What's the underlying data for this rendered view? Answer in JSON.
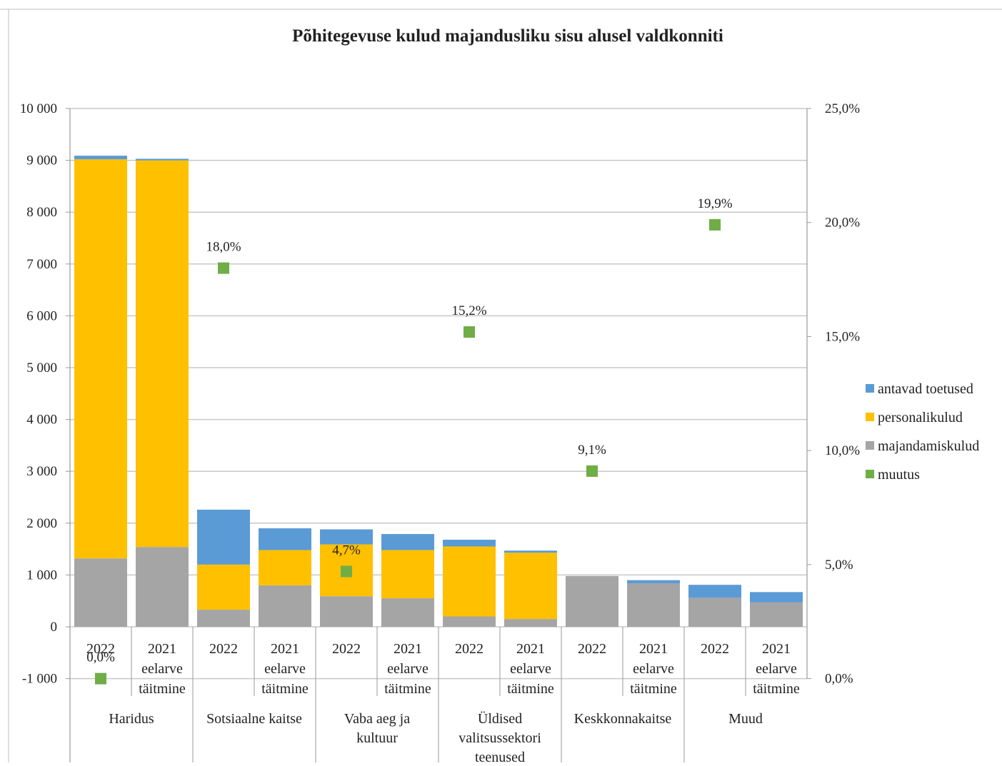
{
  "chart_data": {
    "type": "bar",
    "title": "Põhitegevuse kulud majandusliku sisu alusel valdkonniti",
    "stacked": true,
    "groups": [
      "Haridus",
      "Sotsiaalne kaitse",
      "Vaba aeg ja kultuur",
      "Üldised valitsussektori teenused",
      "Keskkonnakaitse",
      "Muud"
    ],
    "categories": [
      "2022",
      "2021 eelarve täitmine",
      "2022",
      "2021 eelarve täitmine",
      "2022",
      "2021 eelarve täitmine",
      "2022",
      "2021 eelarve täitmine",
      "2022",
      "2021 eelarve täitmine",
      "2022",
      "2021 eelarve täitmine"
    ],
    "category_lines": [
      [
        "2022"
      ],
      [
        "2021",
        "eelarve",
        "täitmine"
      ],
      [
        "2022"
      ],
      [
        "2021",
        "eelarve",
        "täitmine"
      ],
      [
        "2022"
      ],
      [
        "2021",
        "eelarve",
        "täitmine"
      ],
      [
        "2022"
      ],
      [
        "2021",
        "eelarve",
        "täitmine"
      ],
      [
        "2022"
      ],
      [
        "2021",
        "eelarve",
        "täitmine"
      ],
      [
        "2022"
      ],
      [
        "2021",
        "eelarve",
        "täitmine"
      ]
    ],
    "group_lines": [
      [
        "Haridus"
      ],
      [
        "Sotsiaalne kaitse"
      ],
      [
        "Vaba aeg ja",
        "kultuur"
      ],
      [
        "Üldised",
        "valitsussektori",
        "teenused"
      ],
      [
        "Keskkonnakaitse"
      ],
      [
        "Muud"
      ]
    ],
    "series": [
      {
        "name": "majandamiskulud",
        "color": "#a5a5a5",
        "values": [
          1320,
          1540,
          330,
          800,
          590,
          550,
          200,
          150,
          980,
          840,
          560,
          470
        ]
      },
      {
        "name": "personalikulud",
        "color": "#ffc000",
        "values": [
          7700,
          7460,
          870,
          680,
          1000,
          930,
          1350,
          1280,
          0,
          0,
          0,
          0
        ]
      },
      {
        "name": "antavad toetused",
        "color": "#5b9bd5",
        "values": [
          70,
          30,
          1060,
          420,
          290,
          310,
          130,
          40,
          0,
          60,
          250,
          200
        ]
      }
    ],
    "change": {
      "name": "muutus",
      "color": "#70ad47",
      "category_index": [
        0,
        2,
        4,
        6,
        8,
        10
      ],
      "values": [
        0.0,
        18.0,
        4.7,
        15.2,
        9.1,
        19.9
      ],
      "labels": [
        "0,0%",
        "18,0%",
        "4,7%",
        "15,2%",
        "9,1%",
        "19,9%"
      ]
    },
    "legend_order": [
      "antavad toetused",
      "personalikulud",
      "majandamiskulud",
      "muutus"
    ],
    "legend_position": "right",
    "y_left": {
      "min": -1000,
      "max": 10000,
      "step": 1000,
      "tick_labels": [
        "-1 000",
        "0",
        "1 000",
        "2 000",
        "3 000",
        "4 000",
        "5 000",
        "6 000",
        "7 000",
        "8 000",
        "9 000",
        "10 000"
      ]
    },
    "y_right": {
      "min": 0,
      "max": 25,
      "step": 5,
      "tick_labels": [
        "0,0%",
        "5,0%",
        "10,0%",
        "15,0%",
        "20,0%",
        "25,0%"
      ]
    },
    "gridlines": true
  }
}
